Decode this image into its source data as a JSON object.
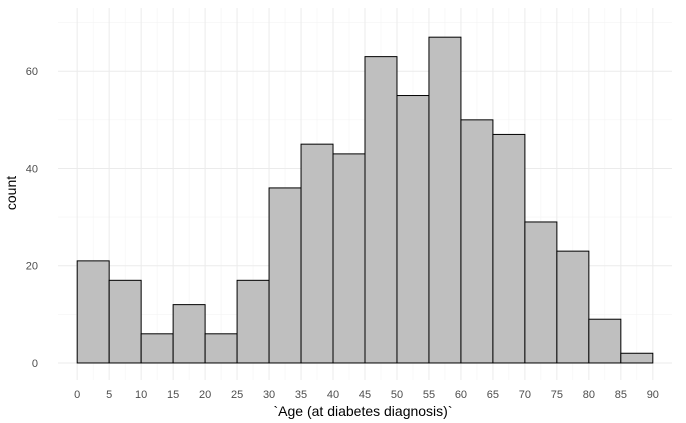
{
  "chart_data": {
    "type": "bar",
    "subtype": "histogram",
    "xlabel": "`Age (at diabetes diagnosis)`",
    "ylabel": "count",
    "bin_width": 5,
    "bins": [
      {
        "start": 0,
        "end": 5,
        "count": 21
      },
      {
        "start": 5,
        "end": 10,
        "count": 17
      },
      {
        "start": 10,
        "end": 15,
        "count": 6
      },
      {
        "start": 15,
        "end": 20,
        "count": 12
      },
      {
        "start": 20,
        "end": 25,
        "count": 6
      },
      {
        "start": 25,
        "end": 30,
        "count": 17
      },
      {
        "start": 30,
        "end": 35,
        "count": 36
      },
      {
        "start": 35,
        "end": 40,
        "count": 45
      },
      {
        "start": 40,
        "end": 45,
        "count": 43
      },
      {
        "start": 45,
        "end": 50,
        "count": 63
      },
      {
        "start": 50,
        "end": 55,
        "count": 55
      },
      {
        "start": 55,
        "end": 60,
        "count": 67
      },
      {
        "start": 60,
        "end": 65,
        "count": 50
      },
      {
        "start": 65,
        "end": 70,
        "count": 47
      },
      {
        "start": 70,
        "end": 75,
        "count": 29
      },
      {
        "start": 75,
        "end": 80,
        "count": 23
      },
      {
        "start": 80,
        "end": 85,
        "count": 9
      },
      {
        "start": 85,
        "end": 90,
        "count": 2
      }
    ],
    "xlim": [
      -3,
      93
    ],
    "ylim": [
      -3.5,
      73
    ],
    "x_ticks": [
      0,
      5,
      10,
      15,
      20,
      25,
      30,
      35,
      40,
      45,
      50,
      55,
      60,
      65,
      70,
      75,
      80,
      85,
      90
    ],
    "y_ticks": [
      0,
      20,
      40,
      60
    ],
    "grid": true,
    "legend": "none",
    "colors": {
      "bar_fill": "#bfbfbf",
      "bar_outline": "#000000",
      "grid": "#ebebeb",
      "tick_text": "#4d4d4d"
    }
  }
}
